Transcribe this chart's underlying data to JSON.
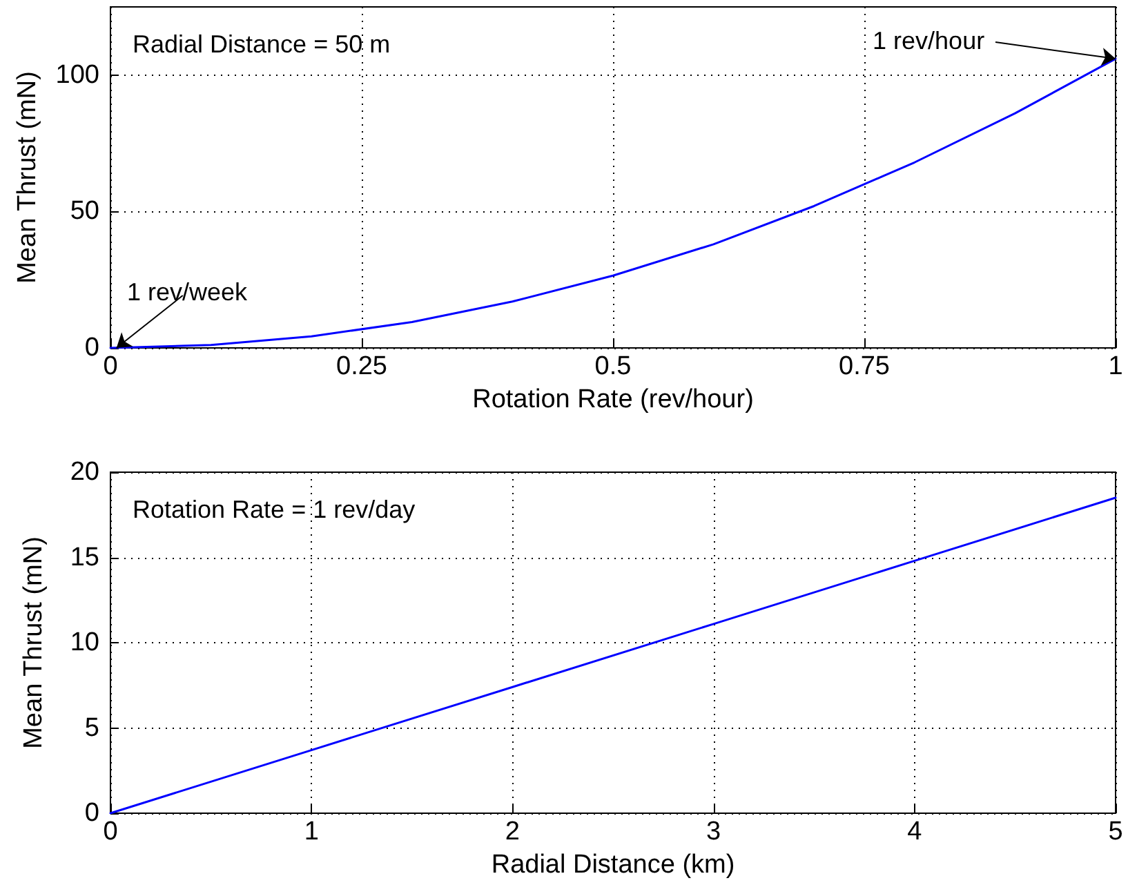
{
  "chart_data": [
    {
      "type": "line",
      "xlabel": "Rotation Rate (rev/hour)",
      "ylabel": "Mean Thrust (mN)",
      "x": [
        0,
        0.1,
        0.2,
        0.3,
        0.4,
        0.5,
        0.6,
        0.7,
        0.8,
        0.9,
        1
      ],
      "series": [
        {
          "color": "#0000ff",
          "values": [
            0,
            1.06,
            4.24,
            9.5,
            17,
            26.5,
            38,
            52,
            68,
            86,
            106
          ]
        }
      ],
      "xlim": [
        0,
        1
      ],
      "xticks": [
        0,
        0.25,
        0.5,
        0.75,
        1
      ],
      "ylim": [
        0,
        125
      ],
      "yticks": [
        0,
        50,
        100
      ],
      "grid": true,
      "marker": "none",
      "line_style": "solid",
      "annotations": [
        "Radial Distance = 50 m",
        {
          "text": "1 rev/week",
          "x": 0.006,
          "y": 0
        },
        {
          "text": "1 rev/hour",
          "x": 1,
          "y": 106
        }
      ]
    },
    {
      "type": "line",
      "xlabel": "Radial Distance (km)",
      "ylabel": "Mean Thrust (mN)",
      "x": [
        0,
        1,
        2,
        3,
        4,
        5
      ],
      "series": [
        {
          "color": "#0000ff",
          "values": [
            0,
            3.7,
            7.4,
            11.1,
            14.8,
            18.5
          ]
        }
      ],
      "xlim": [
        0,
        5
      ],
      "xticks": [
        0,
        1,
        2,
        3,
        4,
        5
      ],
      "ylim": [
        0,
        20
      ],
      "yticks": [
        0,
        5,
        10,
        15,
        20
      ],
      "grid": true,
      "marker": "none",
      "line_style": "solid",
      "annotations": [
        "Rotation Rate = 1 rev/day"
      ]
    }
  ]
}
